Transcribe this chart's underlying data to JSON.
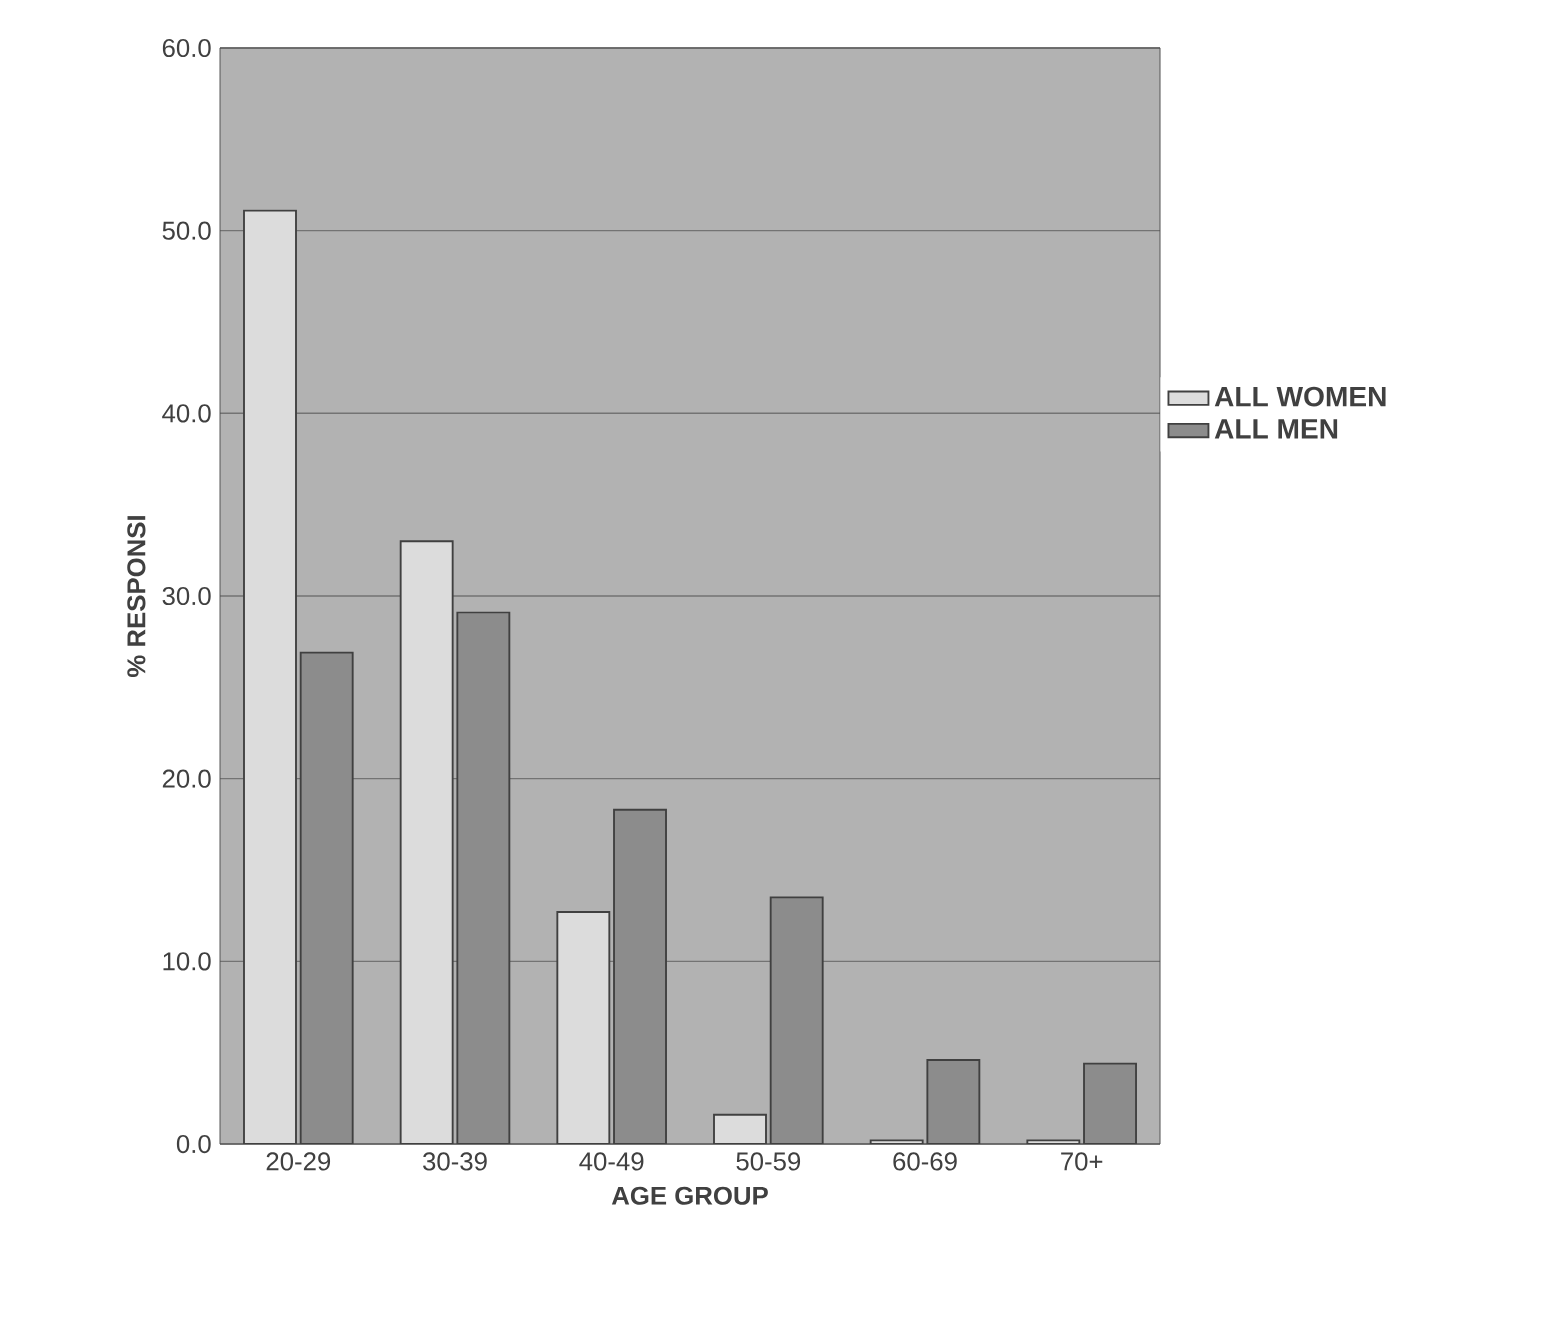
{
  "chart_data": {
    "type": "bar",
    "xlabel": "AGE GROUP",
    "ylabel": "% RESPONSI",
    "categories": [
      "20-29",
      "30-39",
      "40-49",
      "50-59",
      "60-69",
      "70+"
    ],
    "series": [
      {
        "name": "ALL WOMEN",
        "color": "#dcdcdc",
        "values": [
          51.1,
          33.0,
          12.7,
          1.6,
          0.2,
          0.2
        ]
      },
      {
        "name": "ALL MEN",
        "color": "#8c8c8c",
        "values": [
          26.9,
          29.1,
          18.3,
          13.5,
          4.6,
          4.4
        ]
      }
    ],
    "ylim": [
      0,
      60
    ],
    "yticks": [
      {
        "value": 0,
        "label": "0.0"
      },
      {
        "value": 10,
        "label": "10.0"
      },
      {
        "value": 20,
        "label": "20.0"
      },
      {
        "value": 30,
        "label": "30.0"
      },
      {
        "value": 40,
        "label": "40.0"
      },
      {
        "value": 50,
        "label": "50.0"
      },
      {
        "value": 60,
        "label": "60.0"
      }
    ],
    "grid": "y",
    "legend": "right"
  }
}
